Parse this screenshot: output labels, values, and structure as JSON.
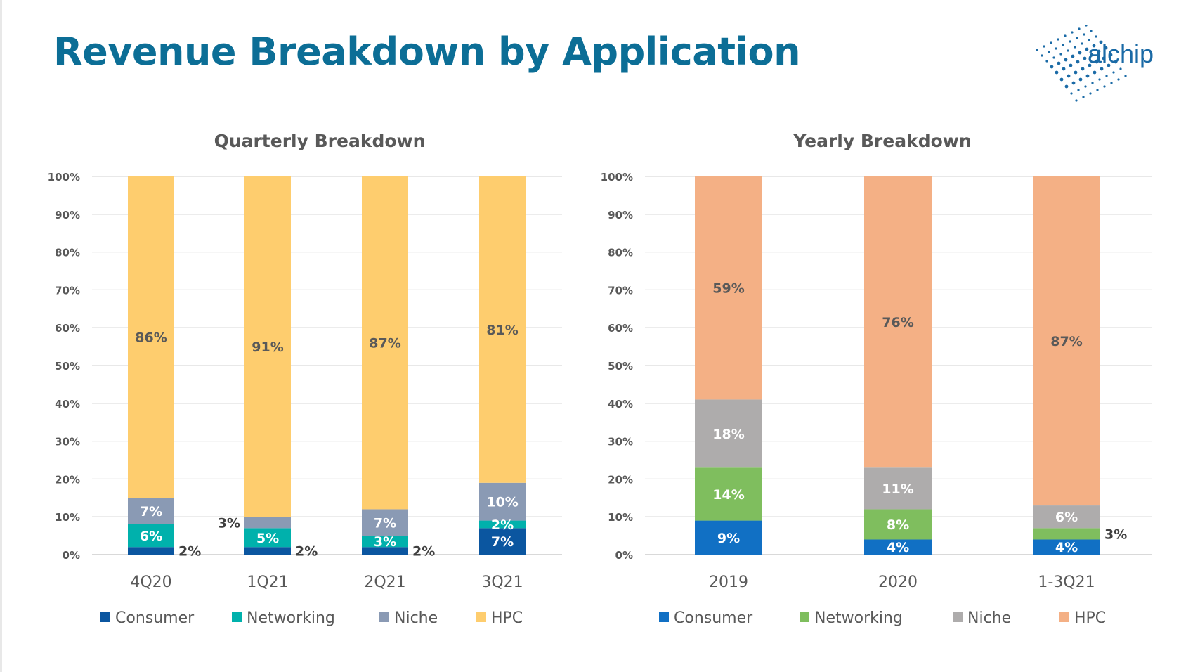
{
  "title": "Revenue Breakdown by Application",
  "logo_text": "alchip",
  "chart_data": [
    {
      "type": "bar",
      "stacked": true,
      "percent": true,
      "title": "Quarterly Breakdown",
      "categories": [
        "4Q20",
        "1Q21",
        "2Q21",
        "3Q21"
      ],
      "ylim": [
        0,
        100
      ],
      "yticks": [
        "0%",
        "10%",
        "20%",
        "30%",
        "40%",
        "50%",
        "60%",
        "70%",
        "80%",
        "90%",
        "100%"
      ],
      "grid": true,
      "legend": "bottom",
      "series": [
        {
          "name": "Consumer",
          "color": "#0b56a0",
          "values": [
            2,
            2,
            2,
            7
          ]
        },
        {
          "name": "Networking",
          "color": "#00b1ac",
          "values": [
            6,
            5,
            3,
            2
          ]
        },
        {
          "name": "Niche",
          "color": "#8a9ab4",
          "values": [
            7,
            3,
            7,
            10
          ]
        },
        {
          "name": "HPC",
          "color": "#fecd6e",
          "values": [
            86,
            91,
            87,
            81
          ]
        }
      ]
    },
    {
      "type": "bar",
      "stacked": true,
      "percent": true,
      "title": "Yearly Breakdown",
      "categories": [
        "2019",
        "2020",
        "1-3Q21"
      ],
      "ylim": [
        0,
        100
      ],
      "yticks": [
        "0%",
        "10%",
        "20%",
        "30%",
        "40%",
        "50%",
        "60%",
        "70%",
        "80%",
        "90%",
        "100%"
      ],
      "grid": true,
      "legend": "bottom",
      "series": [
        {
          "name": "Consumer",
          "color": "#1170c4",
          "values": [
            9,
            4,
            4
          ]
        },
        {
          "name": "Networking",
          "color": "#7fbe5e",
          "values": [
            14,
            8,
            3
          ]
        },
        {
          "name": "Niche",
          "color": "#aeacac",
          "values": [
            18,
            11,
            6
          ]
        },
        {
          "name": "HPC",
          "color": "#f4b085",
          "values": [
            59,
            76,
            87
          ]
        }
      ]
    }
  ]
}
